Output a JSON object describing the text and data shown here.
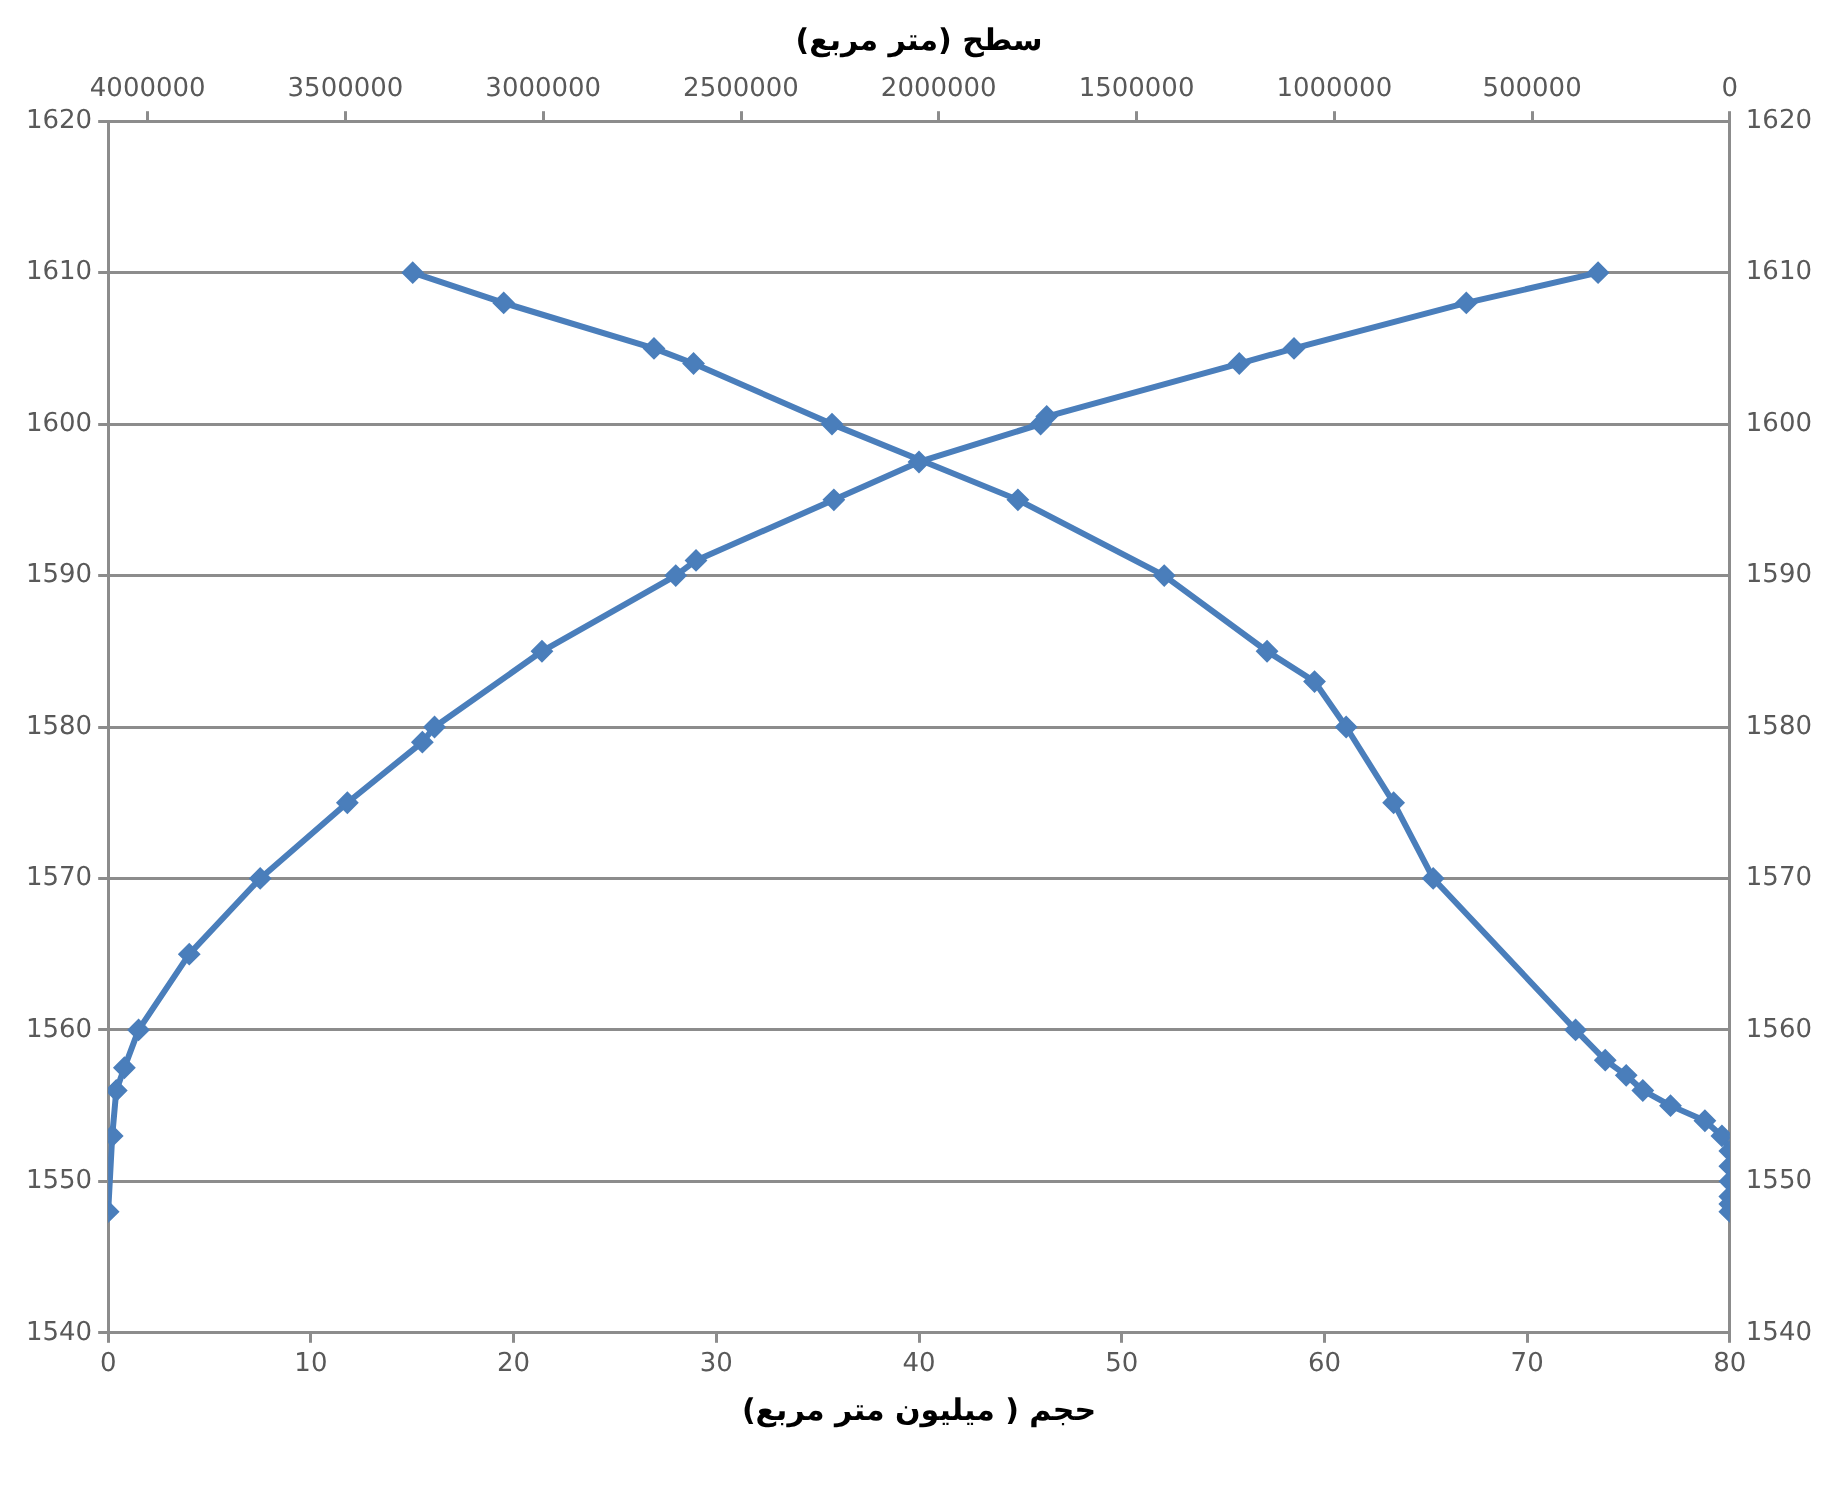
{
  "chart_data": {
    "type": "line",
    "xlabel": "حجم ( میلیون متر مربع)",
    "x2label": "سطح (متر مربع)",
    "xlim": [
      0,
      80
    ],
    "xticks": [
      0,
      10,
      20,
      30,
      40,
      50,
      60,
      70,
      80
    ],
    "x2lim": [
      4100000,
      0
    ],
    "x2ticks": [
      4000000,
      3500000,
      3000000,
      2500000,
      2000000,
      1500000,
      1000000,
      500000,
      0
    ],
    "ylim": [
      1540,
      1620
    ],
    "yticks": [
      1540,
      1550,
      1560,
      1570,
      1580,
      1590,
      1600,
      1610,
      1620
    ],
    "y2lim": [
      1540,
      1620
    ],
    "y2ticks": [
      1540,
      1550,
      1560,
      1570,
      1580,
      1590,
      1600,
      1610,
      1620
    ],
    "grid": "y",
    "marker": "diamond",
    "line_style": "solid",
    "legend": false,
    "series": [
      {
        "color": "#4a7ebb",
        "x": [
          0,
          0.2,
          0.4,
          0.8,
          1.5,
          4,
          7.5,
          11.8,
          15.5,
          16.1,
          21.4,
          28,
          29,
          35.8,
          40,
          46,
          46.3,
          55.8,
          58.5,
          67,
          73.5
        ],
        "values": [
          1548,
          1553,
          1556,
          1557.5,
          1560,
          1565,
          1570,
          1575,
          1579,
          1580,
          1585,
          1590,
          1591,
          1595,
          1597.5,
          1600,
          1600.5,
          1604,
          1605,
          1608,
          1610
        ]
      },
      {
        "color": "#4a7ebb",
        "axis": "x2",
        "x": [
          3330000,
          3100000,
          2720000,
          2620000,
          2270000,
          1800000,
          1430000,
          1170000,
          1050000,
          970000,
          850000,
          750000,
          390000,
          315000,
          262000,
          220000,
          150000,
          63000,
          20000,
          0,
          0,
          0,
          0,
          0,
          0
        ],
        "values": [
          1610,
          1608,
          1605,
          1604,
          1600,
          1595,
          1590,
          1585,
          1583,
          1580,
          1575,
          1570,
          1560,
          1558,
          1557,
          1556,
          1555,
          1554,
          1553,
          1552,
          1551,
          1550,
          1549,
          1548.5,
          1548
        ]
      }
    ]
  }
}
